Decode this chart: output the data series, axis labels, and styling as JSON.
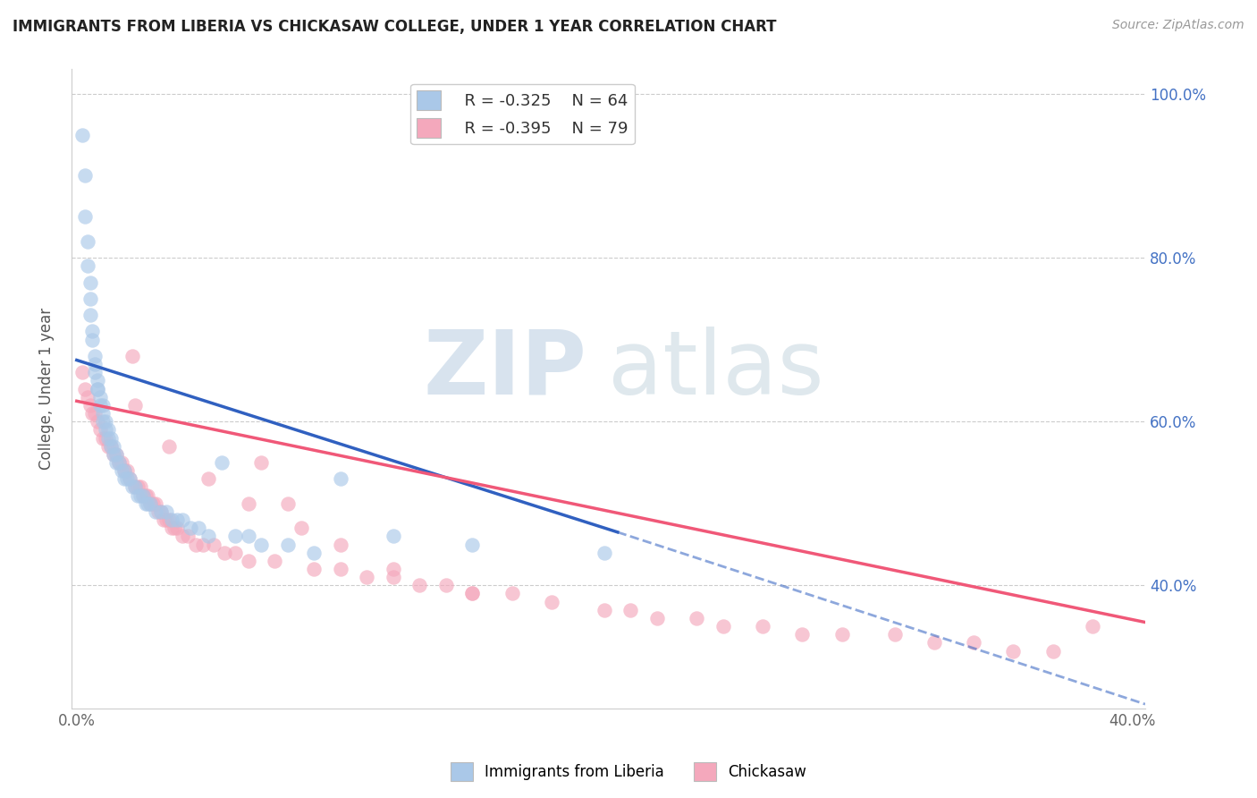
{
  "title": "IMMIGRANTS FROM LIBERIA VS CHICKASAW COLLEGE, UNDER 1 YEAR CORRELATION CHART",
  "source": "Source: ZipAtlas.com",
  "ylabel": "College, Under 1 year",
  "xlim": [
    -0.002,
    0.405
  ],
  "ylim": [
    0.25,
    1.03
  ],
  "yticks": [
    0.4,
    0.6,
    0.8,
    1.0
  ],
  "ytick_labels": [
    "40.0%",
    "60.0%",
    "80.0%",
    "100.0%"
  ],
  "xticks": [
    0.0,
    0.1,
    0.2,
    0.3,
    0.4
  ],
  "xtick_labels": [
    "0.0%",
    "",
    "",
    "",
    "40.0%"
  ],
  "legend_r1": "R = -0.325",
  "legend_n1": "N = 64",
  "legend_r2": "R = -0.395",
  "legend_n2": "N = 79",
  "blue_color": "#aac8e8",
  "pink_color": "#f4a8bc",
  "blue_line_color": "#3060c0",
  "pink_line_color": "#f05878",
  "blue_scatter_x": [
    0.002,
    0.003,
    0.003,
    0.004,
    0.004,
    0.005,
    0.005,
    0.005,
    0.006,
    0.006,
    0.007,
    0.007,
    0.007,
    0.008,
    0.008,
    0.008,
    0.009,
    0.009,
    0.01,
    0.01,
    0.01,
    0.011,
    0.011,
    0.012,
    0.012,
    0.013,
    0.013,
    0.014,
    0.014,
    0.015,
    0.015,
    0.016,
    0.017,
    0.018,
    0.018,
    0.019,
    0.02,
    0.021,
    0.022,
    0.023,
    0.024,
    0.025,
    0.026,
    0.027,
    0.028,
    0.03,
    0.032,
    0.034,
    0.036,
    0.038,
    0.04,
    0.043,
    0.046,
    0.05,
    0.055,
    0.06,
    0.065,
    0.07,
    0.08,
    0.09,
    0.1,
    0.12,
    0.15,
    0.2
  ],
  "blue_scatter_y": [
    0.95,
    0.9,
    0.85,
    0.82,
    0.79,
    0.77,
    0.75,
    0.73,
    0.71,
    0.7,
    0.68,
    0.67,
    0.66,
    0.65,
    0.64,
    0.64,
    0.63,
    0.62,
    0.62,
    0.61,
    0.6,
    0.6,
    0.59,
    0.59,
    0.58,
    0.58,
    0.57,
    0.57,
    0.56,
    0.56,
    0.55,
    0.55,
    0.54,
    0.54,
    0.53,
    0.53,
    0.53,
    0.52,
    0.52,
    0.51,
    0.51,
    0.51,
    0.5,
    0.5,
    0.5,
    0.49,
    0.49,
    0.49,
    0.48,
    0.48,
    0.48,
    0.47,
    0.47,
    0.46,
    0.55,
    0.46,
    0.46,
    0.45,
    0.45,
    0.44,
    0.53,
    0.46,
    0.45,
    0.44
  ],
  "pink_scatter_x": [
    0.002,
    0.003,
    0.004,
    0.005,
    0.006,
    0.007,
    0.008,
    0.009,
    0.01,
    0.011,
    0.012,
    0.013,
    0.014,
    0.015,
    0.016,
    0.017,
    0.018,
    0.019,
    0.02,
    0.021,
    0.022,
    0.023,
    0.024,
    0.025,
    0.026,
    0.027,
    0.028,
    0.029,
    0.03,
    0.031,
    0.032,
    0.033,
    0.034,
    0.035,
    0.036,
    0.037,
    0.038,
    0.04,
    0.042,
    0.045,
    0.048,
    0.052,
    0.056,
    0.06,
    0.065,
    0.07,
    0.075,
    0.08,
    0.09,
    0.1,
    0.11,
    0.12,
    0.13,
    0.14,
    0.15,
    0.165,
    0.18,
    0.2,
    0.21,
    0.22,
    0.235,
    0.245,
    0.26,
    0.275,
    0.29,
    0.31,
    0.325,
    0.34,
    0.355,
    0.37,
    0.385,
    0.022,
    0.035,
    0.05,
    0.065,
    0.085,
    0.1,
    0.12,
    0.15
  ],
  "pink_scatter_y": [
    0.66,
    0.64,
    0.63,
    0.62,
    0.61,
    0.61,
    0.6,
    0.59,
    0.58,
    0.58,
    0.57,
    0.57,
    0.56,
    0.56,
    0.55,
    0.55,
    0.54,
    0.54,
    0.53,
    0.68,
    0.52,
    0.52,
    0.52,
    0.51,
    0.51,
    0.51,
    0.5,
    0.5,
    0.5,
    0.49,
    0.49,
    0.48,
    0.48,
    0.48,
    0.47,
    0.47,
    0.47,
    0.46,
    0.46,
    0.45,
    0.45,
    0.45,
    0.44,
    0.44,
    0.43,
    0.55,
    0.43,
    0.5,
    0.42,
    0.42,
    0.41,
    0.41,
    0.4,
    0.4,
    0.39,
    0.39,
    0.38,
    0.37,
    0.37,
    0.36,
    0.36,
    0.35,
    0.35,
    0.34,
    0.34,
    0.34,
    0.33,
    0.33,
    0.32,
    0.32,
    0.35,
    0.62,
    0.57,
    0.53,
    0.5,
    0.47,
    0.45,
    0.42,
    0.39
  ]
}
